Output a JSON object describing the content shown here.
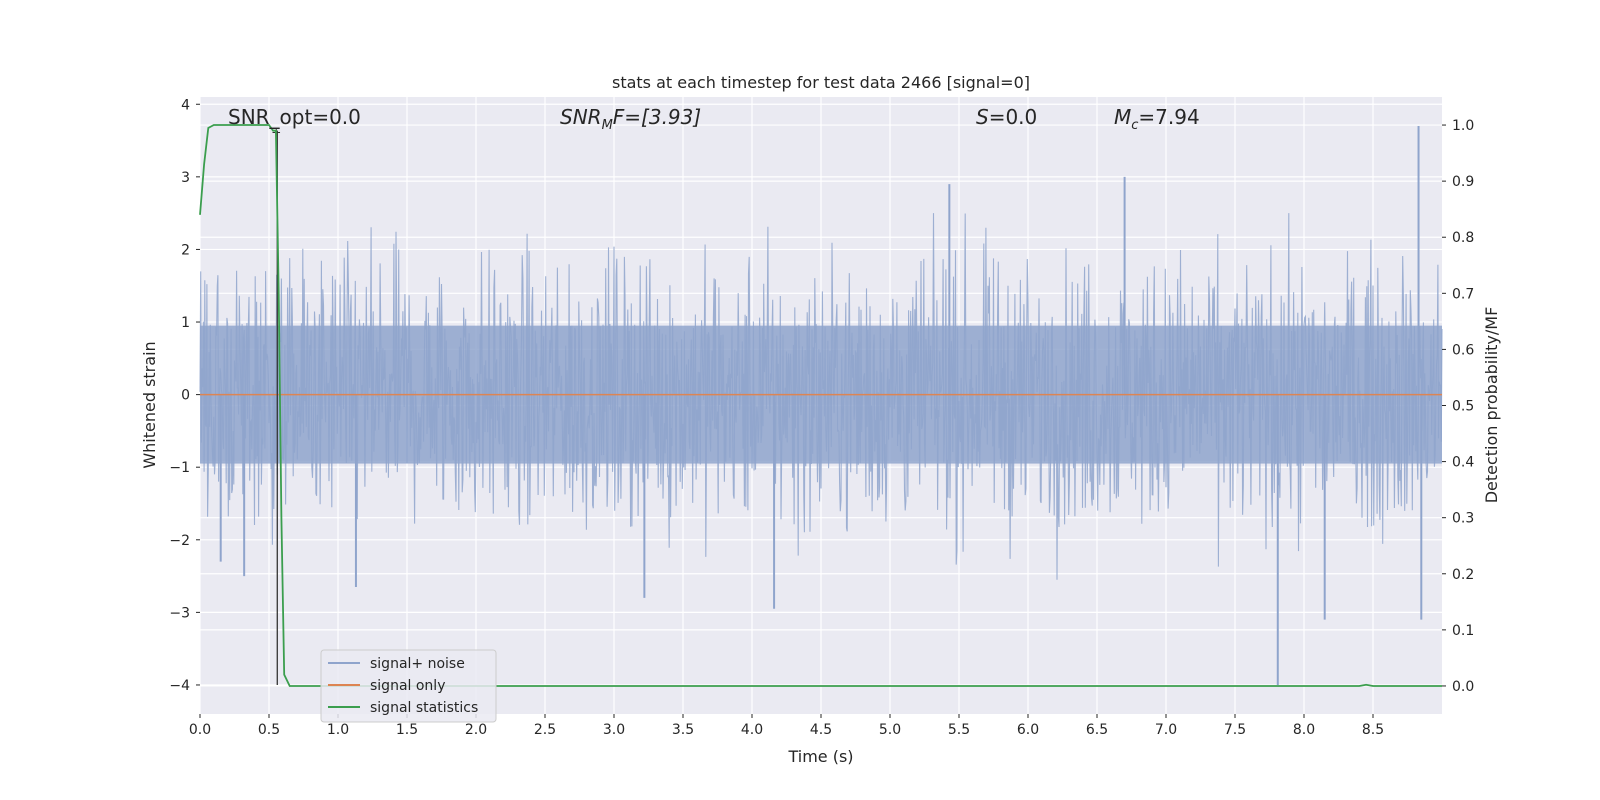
{
  "chart_data": {
    "type": "line",
    "title": "stats at each timestep for test data 2466 [signal=0]",
    "xlabel": "Time (s)",
    "ylabel": "Whitened strain",
    "ylabel_right": "Detection probability/MF",
    "xlim": [
      0.0,
      9.0
    ],
    "ylim": [
      -4.4,
      4.1
    ],
    "ylim_right": [
      -0.05,
      1.05
    ],
    "x_ticks": [
      "0.0",
      "0.5",
      "1.0",
      "1.5",
      "2.0",
      "2.5",
      "3.0",
      "3.5",
      "4.0",
      "4.5",
      "5.0",
      "5.5",
      "6.0",
      "6.5",
      "7.0",
      "7.5",
      "8.0",
      "8.5"
    ],
    "x_tick_values": [
      0.0,
      0.5,
      1.0,
      1.5,
      2.0,
      2.5,
      3.0,
      3.5,
      4.0,
      4.5,
      5.0,
      5.5,
      6.0,
      6.5,
      7.0,
      7.5,
      8.0,
      8.5
    ],
    "y_ticks": [
      "−4",
      "−3",
      "−2",
      "−1",
      "0",
      "1",
      "2",
      "3",
      "4"
    ],
    "y_tick_values": [
      -4,
      -3,
      -2,
      -1,
      0,
      1,
      2,
      3,
      4
    ],
    "y_ticks_right": [
      "0.0",
      "0.1",
      "0.2",
      "0.3",
      "0.4",
      "0.5",
      "0.6",
      "0.7",
      "0.8",
      "0.9",
      "1.0"
    ],
    "y_tick_values_right": [
      0.0,
      0.1,
      0.2,
      0.3,
      0.4,
      0.5,
      0.6,
      0.7,
      0.8,
      0.9,
      1.0
    ],
    "grid": true,
    "legend_position": "lower-left",
    "annotations": {
      "snr_opt": "SNR_opt=0.0",
      "snr_mf_sym": "SNR",
      "snr_mf_sub": "M",
      "snr_mf_rest": "F=[3.93]",
      "s_sym": "S",
      "s_rest": "=0.0",
      "mc_sym": "M",
      "mc_sub": "c",
      "mc_rest": "=7.94"
    },
    "series": [
      {
        "name": "signal+ noise",
        "color": "#8fa4cc",
        "axis": "left",
        "description_values": {
          "t_start": 0.0,
          "t_end": 9.0,
          "approx_std": 0.9,
          "peak_values": [
            [
              0.15,
              -2.3
            ],
            [
              0.32,
              -2.5
            ],
            [
              1.13,
              -2.65
            ],
            [
              3.22,
              -2.8
            ],
            [
              4.16,
              -2.95
            ],
            [
              7.81,
              -4.0
            ],
            [
              8.15,
              -3.1
            ],
            [
              8.83,
              3.7
            ],
            [
              8.85,
              -3.1
            ],
            [
              6.7,
              3.0
            ],
            [
              5.43,
              2.9
            ]
          ]
        }
      },
      {
        "name": "signal only",
        "color": "#dd8452",
        "axis": "left",
        "x": [
          0.0,
          9.0
        ],
        "y": [
          0.0,
          0.0
        ]
      },
      {
        "name": "signal statistics",
        "color": "#3b9e4e",
        "axis": "right",
        "x": [
          0.0,
          0.03,
          0.06,
          0.1,
          0.2,
          0.3,
          0.4,
          0.5,
          0.53,
          0.55,
          0.57,
          0.59,
          0.61,
          0.65,
          0.7,
          1.0,
          2.0,
          3.0,
          4.0,
          5.0,
          6.0,
          7.0,
          8.0,
          8.4,
          8.45,
          8.5,
          9.0
        ],
        "y": [
          0.84,
          0.93,
          0.995,
          1.0,
          1.0,
          1.0,
          1.0,
          1.0,
          0.99,
          0.99,
          0.7,
          0.3,
          0.02,
          0.0,
          0.0,
          0.0,
          0.0,
          0.0,
          0.0,
          0.0,
          0.0,
          0.0,
          0.0,
          0.0,
          0.002,
          0.0,
          0.0
        ]
      }
    ],
    "marker": {
      "x": 0.56,
      "y_right_top": 0.99,
      "y_left_bottom": -4.0
    }
  }
}
